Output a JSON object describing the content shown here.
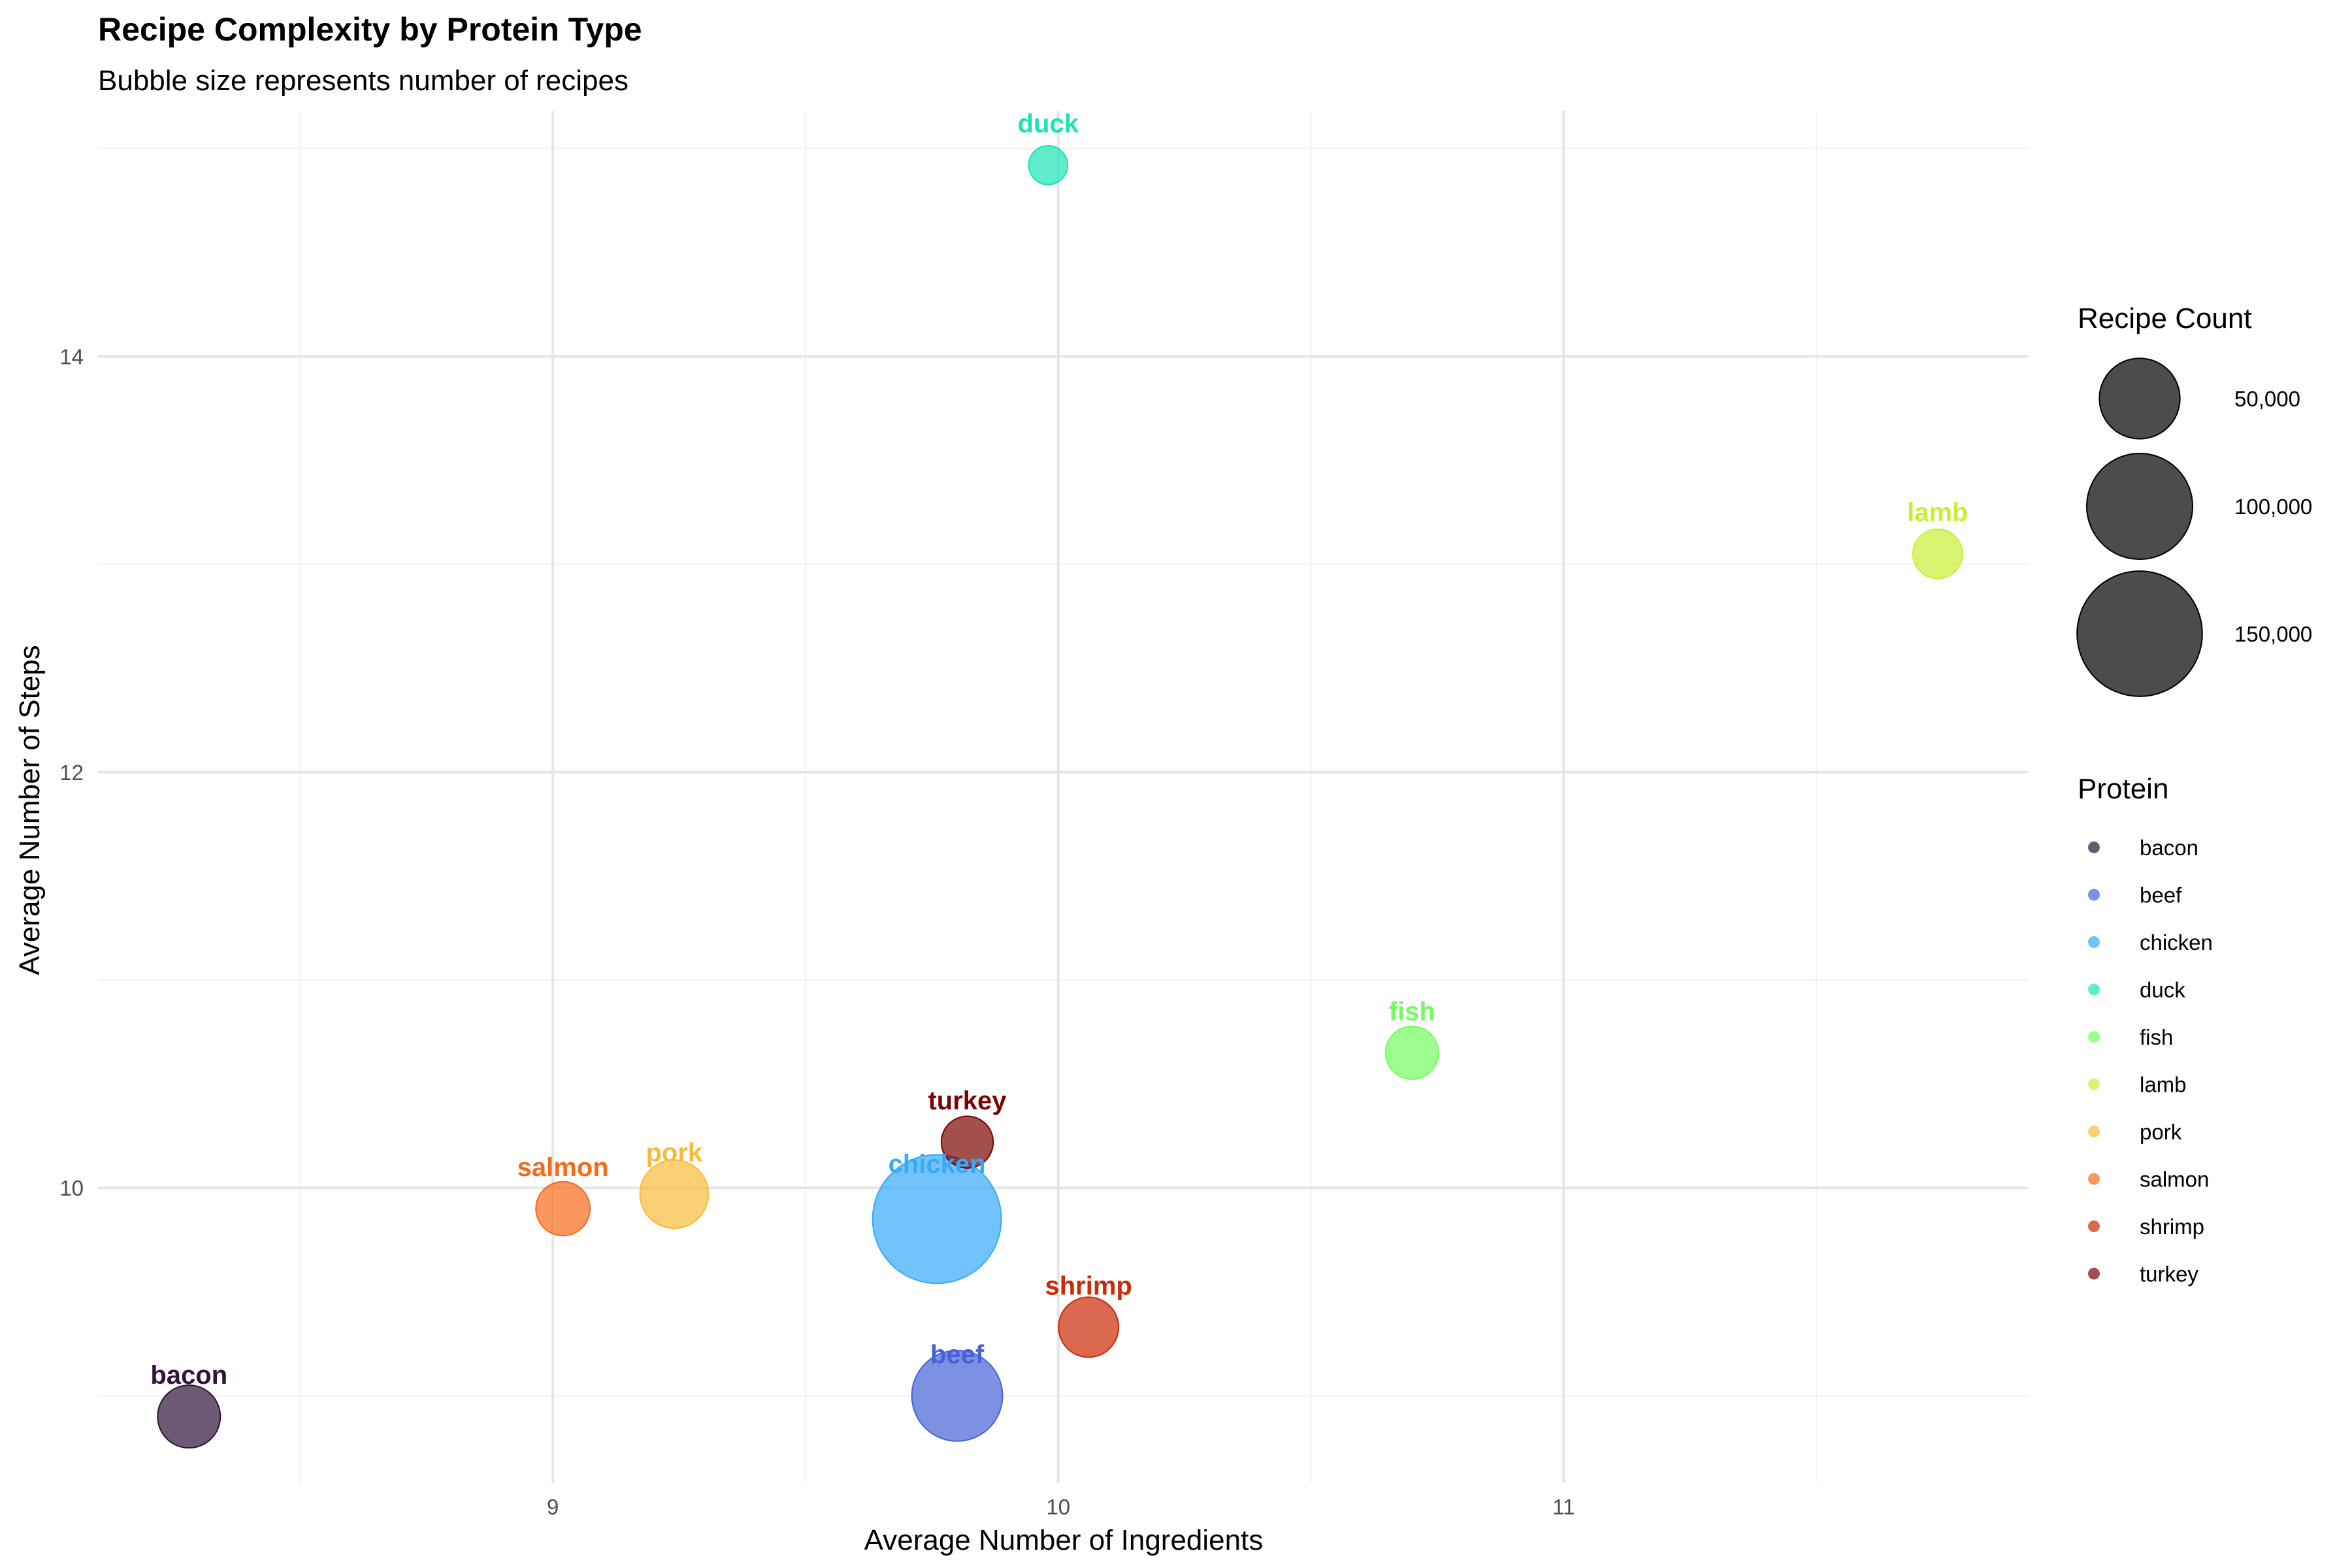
{
  "chart_data": {
    "type": "scatter",
    "title": "Recipe Complexity by Protein Type",
    "subtitle": "Bubble size represents number of recipes",
    "xlabel": "Average Number of Ingredients",
    "ylabel": "Average Number of Steps",
    "xlim": [
      8.1,
      11.92
    ],
    "ylim": [
      8.58,
      15.18
    ],
    "x_ticks": [
      "9",
      "10",
      "11"
    ],
    "y_ticks": [
      "10",
      "12",
      "14"
    ],
    "grid": true,
    "legend_position": "right",
    "size_legend": {
      "title": "Recipe Count",
      "entries": [
        {
          "value": 50000,
          "label": "50,000"
        },
        {
          "value": 100000,
          "label": "100,000"
        },
        {
          "value": 150000,
          "label": "150,000"
        }
      ]
    },
    "color_legend": {
      "title": "Protein"
    },
    "series": [
      {
        "name": "bacon",
        "x": 8.28,
        "y": 8.9,
        "count": 25000,
        "color": "#30123B"
      },
      {
        "name": "beef",
        "x": 9.8,
        "y": 9.0,
        "count": 68000,
        "color": "#4662D7"
      },
      {
        "name": "chicken",
        "x": 9.76,
        "y": 9.85,
        "count": 160000,
        "color": "#36AAF9"
      },
      {
        "name": "duck",
        "x": 9.98,
        "y": 14.92,
        "count": 5000,
        "color": "#1AE4B6"
      },
      {
        "name": "fish",
        "x": 10.7,
        "y": 10.65,
        "count": 15000,
        "color": "#72FE5E"
      },
      {
        "name": "lamb",
        "x": 11.74,
        "y": 13.05,
        "count": 12000,
        "color": "#C7EF34"
      },
      {
        "name": "pork",
        "x": 9.24,
        "y": 9.97,
        "count": 32000,
        "color": "#FABA39"
      },
      {
        "name": "salmon",
        "x": 9.02,
        "y": 9.9,
        "count": 16000,
        "color": "#F66B19"
      },
      {
        "name": "shrimp",
        "x": 10.06,
        "y": 9.33,
        "count": 22000,
        "color": "#CB2A04"
      },
      {
        "name": "turkey",
        "x": 9.82,
        "y": 10.22,
        "count": 14000,
        "color": "#7A0403"
      }
    ]
  }
}
